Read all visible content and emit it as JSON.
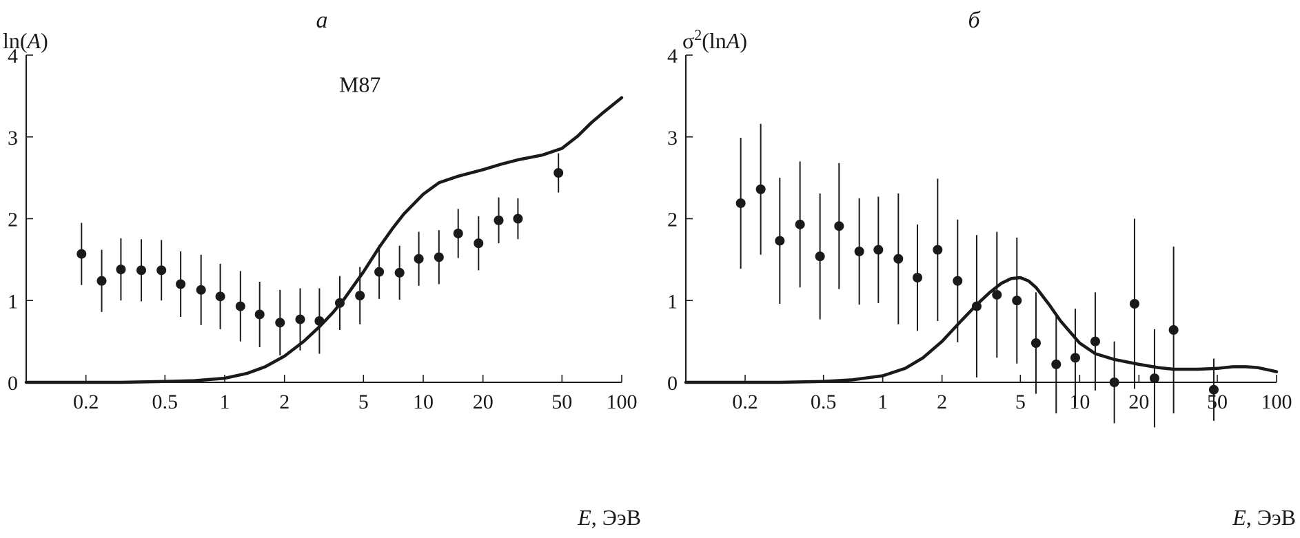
{
  "chart_data": [
    {
      "type": "scatter",
      "title": "а",
      "ylabel_prefix": "ln(",
      "ylabel_var": "A",
      "ylabel_suffix": ")",
      "xlabel_var": "E",
      "xlabel_rest": ", ЭэВ",
      "xscale": "log",
      "xlim": [
        0.1,
        100
      ],
      "ylim": [
        0,
        4
      ],
      "xticks": [
        0.2,
        0.5,
        1,
        2,
        5,
        10,
        20,
        50,
        100
      ],
      "xtick_labels": [
        "0.2",
        "0.5",
        "1",
        "2",
        "5",
        "10",
        "20",
        "50",
        "100"
      ],
      "yticks": [
        0,
        1,
        2,
        3,
        4
      ],
      "ytick_labels": [
        "0",
        "1",
        "2",
        "3",
        "4"
      ],
      "annotations": [
        {
          "text": "M87",
          "x": 4.8,
          "y": 3.55
        }
      ],
      "points": {
        "x": [
          0.19,
          0.24,
          0.3,
          0.38,
          0.48,
          0.6,
          0.76,
          0.95,
          1.2,
          1.5,
          1.9,
          2.4,
          3.0,
          3.8,
          4.8,
          6.0,
          7.6,
          9.5,
          12,
          15,
          19,
          24,
          30,
          48
        ],
        "y": [
          1.57,
          1.24,
          1.38,
          1.37,
          1.37,
          1.2,
          1.13,
          1.05,
          0.93,
          0.83,
          0.73,
          0.77,
          0.75,
          0.97,
          1.06,
          1.35,
          1.34,
          1.51,
          1.53,
          1.82,
          1.7,
          1.98,
          2.0,
          2.56
        ],
        "yerr": [
          0.38,
          0.38,
          0.38,
          0.38,
          0.37,
          0.4,
          0.43,
          0.4,
          0.43,
          0.4,
          0.4,
          0.38,
          0.4,
          0.33,
          0.35,
          0.33,
          0.33,
          0.33,
          0.33,
          0.3,
          0.33,
          0.28,
          0.25,
          0.24
        ]
      },
      "series": [
        {
          "x": [
            0.1,
            0.3,
            0.5,
            0.7,
            1.0,
            1.3,
            1.6,
            2.0,
            2.5,
            3.0,
            3.5,
            4.0,
            5.0,
            6.0,
            7.0,
            8.0,
            10,
            12,
            15,
            20,
            25,
            30,
            40,
            50,
            60,
            70,
            80,
            90,
            100
          ],
          "y": [
            0,
            0,
            0.01,
            0.02,
            0.05,
            0.11,
            0.19,
            0.32,
            0.5,
            0.68,
            0.85,
            1.02,
            1.35,
            1.65,
            1.88,
            2.06,
            2.3,
            2.44,
            2.52,
            2.6,
            2.67,
            2.72,
            2.78,
            2.86,
            3.01,
            3.17,
            3.29,
            3.39,
            3.48
          ]
        }
      ]
    },
    {
      "type": "scatter",
      "title": "б",
      "ylabel_prefix": "σ",
      "ylabel_sup": "2",
      "ylabel_mid": "(ln",
      "ylabel_var": "A",
      "ylabel_suffix": ")",
      "xlabel_var": "E",
      "xlabel_rest": ", ЭэВ",
      "xscale": "log",
      "xlim": [
        0.1,
        100
      ],
      "ylim": [
        0,
        4
      ],
      "xticks": [
        0.2,
        0.5,
        1,
        2,
        5,
        10,
        20,
        50,
        100
      ],
      "xtick_labels": [
        "0.2",
        "0.5",
        "1",
        "2",
        "5",
        "10",
        "20",
        "50",
        "100"
      ],
      "yticks": [
        0,
        1,
        2,
        3,
        4
      ],
      "ytick_labels": [
        "0",
        "1",
        "2",
        "3",
        "4"
      ],
      "points": {
        "x": [
          0.19,
          0.24,
          0.3,
          0.38,
          0.48,
          0.6,
          0.76,
          0.95,
          1.2,
          1.5,
          1.9,
          2.4,
          3.0,
          3.8,
          4.8,
          6.0,
          7.6,
          9.5,
          12,
          15,
          19,
          24,
          30,
          48
        ],
        "y": [
          2.19,
          2.36,
          1.73,
          1.93,
          1.54,
          1.91,
          1.6,
          1.62,
          1.51,
          1.28,
          1.62,
          1.24,
          0.93,
          1.07,
          1.0,
          0.48,
          0.22,
          0.3,
          0.5,
          0.0,
          0.96,
          0.05,
          0.64,
          -0.09
        ],
        "yerr": [
          0.8,
          0.8,
          0.77,
          0.77,
          0.77,
          0.77,
          0.65,
          0.65,
          0.8,
          0.65,
          0.87,
          0.75,
          0.87,
          0.77,
          0.77,
          0.62,
          0.6,
          0.6,
          0.6,
          0.5,
          1.04,
          0.6,
          1.02,
          0.38
        ]
      },
      "series": [
        {
          "x": [
            0.1,
            0.3,
            0.5,
            0.7,
            1.0,
            1.3,
            1.6,
            2.0,
            2.5,
            3.0,
            3.5,
            4.0,
            4.5,
            5.0,
            5.5,
            6.0,
            7.0,
            8.0,
            10,
            12,
            15,
            20,
            25,
            30,
            40,
            50,
            60,
            70,
            80,
            100
          ],
          "y": [
            0,
            0,
            0.01,
            0.03,
            0.08,
            0.17,
            0.3,
            0.5,
            0.75,
            0.95,
            1.1,
            1.21,
            1.27,
            1.28,
            1.24,
            1.16,
            0.95,
            0.75,
            0.48,
            0.35,
            0.28,
            0.22,
            0.18,
            0.16,
            0.16,
            0.17,
            0.19,
            0.19,
            0.18,
            0.13
          ]
        }
      ]
    }
  ]
}
